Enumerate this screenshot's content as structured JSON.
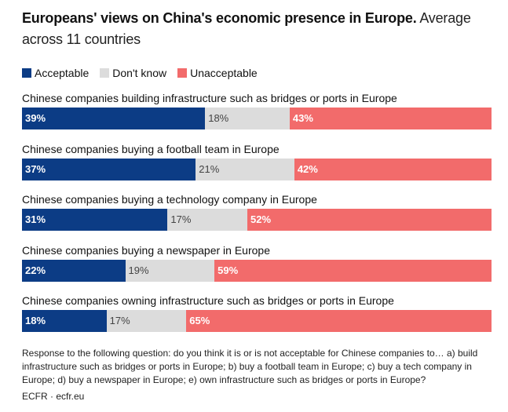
{
  "title": {
    "bold": "Europeans' views on China's economic presence in Europe.",
    "light": "Average across 11 countries"
  },
  "legend": [
    {
      "label": "Acceptable",
      "color": "#0c3c85"
    },
    {
      "label": "Don't know",
      "color": "#dcdcdc"
    },
    {
      "label": "Unacceptable",
      "color": "#f26b6b"
    }
  ],
  "chart_data": {
    "type": "bar",
    "orientation": "horizontal-stacked-100",
    "title": "Europeans' views on China's economic presence in Europe. Average across 11 countries",
    "categories": [
      "Chinese companies building infrastructure such as bridges or ports in Europe",
      "Chinese companies buying a football team in Europe",
      "Chinese companies buying a technology company in Europe",
      "Chinese companies buying a newspaper in Europe",
      "Chinese companies owning infrastructure such as bridges or ports in Europe"
    ],
    "series": [
      {
        "name": "Acceptable",
        "values": [
          39,
          37,
          31,
          22,
          18
        ]
      },
      {
        "name": "Don't know",
        "values": [
          18,
          21,
          17,
          19,
          17
        ]
      },
      {
        "name": "Unacceptable",
        "values": [
          43,
          42,
          52,
          59,
          65
        ]
      }
    ],
    "value_suffix": "%",
    "xlim": [
      0,
      100
    ]
  },
  "note": "Response to the following question: do you think it is or is not acceptable for Chinese companies to… a) build infrastructure such as bridges or ports in Europe; b) buy a football team in Europe; c) buy a tech company in Europe; d) buy a newspaper in Europe; e) own infrastructure such as bridges or ports in Europe?",
  "source": "ECFR · ecfr.eu"
}
